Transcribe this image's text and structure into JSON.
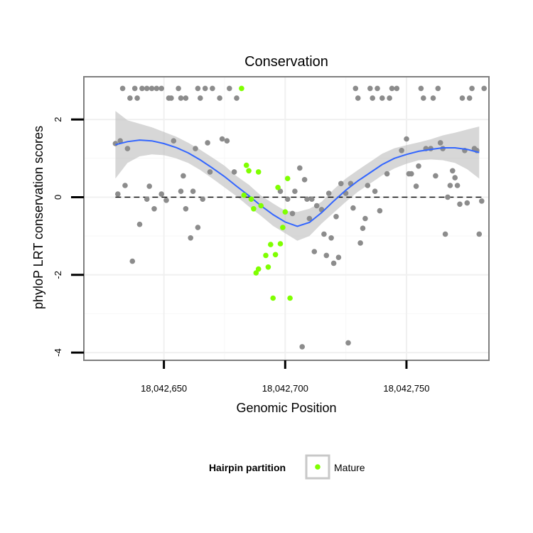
{
  "chart_data": {
    "type": "scatter",
    "title": "Conservation",
    "xlabel": "Genomic Position",
    "ylabel": "phyloP LRT conservation scores",
    "xlim": [
      18042617,
      18042784
    ],
    "ylim": [
      -4.2,
      3.1
    ],
    "x_ticks": [
      18042650,
      18042700,
      18042750
    ],
    "x_tick_labels": [
      "18,042,650",
      "18,042,700",
      "18,042,750"
    ],
    "y_ticks": [
      -4,
      -2,
      0,
      2
    ],
    "y_tick_labels": [
      "-4",
      "-2",
      "0",
      "2"
    ],
    "reference_line": {
      "y": 0,
      "style": "dashed"
    },
    "grid": true,
    "legend": {
      "title": "Hairpin partition",
      "entries": [
        "Mature"
      ],
      "position": "bottom"
    },
    "colors": {
      "other": "#8c8c8c",
      "mature": "#7fff00",
      "smooth": "#3366ff",
      "ribbon": "#bdbdbd",
      "panel_border": "#7f7f7f"
    },
    "series": [
      {
        "points": [
          [
            18042630,
            1.38
          ],
          [
            18042632,
            1.45
          ],
          [
            18042634,
            0.3
          ],
          [
            18042631,
            0.08
          ],
          [
            18042635,
            1.25
          ],
          [
            18042633,
            2.8
          ],
          [
            18042636,
            2.55
          ],
          [
            18042638,
            2.8
          ],
          [
            18042641,
            2.8
          ],
          [
            18042643,
            2.8
          ],
          [
            18042645,
            2.8
          ],
          [
            18042647,
            2.8
          ],
          [
            18042649,
            2.8
          ],
          [
            18042639,
            2.55
          ],
          [
            18042652,
            2.55
          ],
          [
            18042653,
            2.55
          ],
          [
            18042657,
            2.55
          ],
          [
            18042659,
            2.55
          ],
          [
            18042654,
            1.45
          ],
          [
            18042637,
            -1.65
          ],
          [
            18042640,
            -0.7
          ],
          [
            18042643,
            -0.05
          ],
          [
            18042644,
            0.28
          ],
          [
            18042646,
            -0.3
          ],
          [
            18042649,
            0.08
          ],
          [
            18042651,
            -0.08
          ],
          [
            18042656,
            2.8
          ],
          [
            18042657,
            0.15
          ],
          [
            18042658,
            0.55
          ],
          [
            18042659,
            -0.3
          ],
          [
            18042661,
            -1.05
          ],
          [
            18042662,
            0.15
          ],
          [
            18042663,
            1.25
          ],
          [
            18042664,
            -0.78
          ],
          [
            18042666,
            -0.05
          ],
          [
            18042667,
            2.8
          ],
          [
            18042664,
            2.8
          ],
          [
            18042670,
            2.8
          ],
          [
            18042665,
            2.55
          ],
          [
            18042673,
            2.55
          ],
          [
            18042677,
            2.8
          ],
          [
            18042680,
            2.55
          ],
          [
            18042668,
            1.4
          ],
          [
            18042669,
            0.65
          ],
          [
            18042674,
            1.5
          ],
          [
            18042676,
            1.45
          ],
          [
            18042679,
            0.65
          ],
          [
            18042698,
            0.15
          ],
          [
            18042701,
            -0.05
          ],
          [
            18042703,
            -0.42
          ],
          [
            18042704,
            0.15
          ],
          [
            18042706,
            0.75
          ],
          [
            18042707,
            -3.85
          ],
          [
            18042708,
            0.45
          ],
          [
            18042709,
            -0.05
          ],
          [
            18042710,
            -0.55
          ],
          [
            18042711,
            -0.05
          ],
          [
            18042712,
            -1.4
          ],
          [
            18042713,
            -0.22
          ],
          [
            18042715,
            -0.32
          ],
          [
            18042716,
            -0.95
          ],
          [
            18042717,
            -1.5
          ],
          [
            18042718,
            0.1
          ],
          [
            18042719,
            -1.05
          ],
          [
            18042720,
            -1.7
          ],
          [
            18042721,
            -0.5
          ],
          [
            18042722,
            -1.55
          ],
          [
            18042723,
            0.35
          ],
          [
            18042725,
            0.1
          ],
          [
            18042726,
            -3.75
          ],
          [
            18042727,
            0.35
          ],
          [
            18042728,
            -0.28
          ],
          [
            18042729,
            2.8
          ],
          [
            18042730,
            2.55
          ],
          [
            18042731,
            -1.18
          ],
          [
            18042732,
            -0.8
          ],
          [
            18042733,
            -0.55
          ],
          [
            18042734,
            0.3
          ],
          [
            18042735,
            2.8
          ],
          [
            18042736,
            2.55
          ],
          [
            18042737,
            0.15
          ],
          [
            18042738,
            2.8
          ],
          [
            18042739,
            -0.35
          ],
          [
            18042740,
            2.55
          ],
          [
            18042742,
            0.6
          ],
          [
            18042743,
            2.55
          ],
          [
            18042744,
            2.8
          ],
          [
            18042746,
            2.8
          ],
          [
            18042748,
            1.2
          ],
          [
            18042750,
            1.5
          ],
          [
            18042751,
            0.6
          ],
          [
            18042752,
            0.6
          ],
          [
            18042754,
            0.28
          ],
          [
            18042755,
            0.8
          ],
          [
            18042756,
            2.8
          ],
          [
            18042757,
            2.55
          ],
          [
            18042758,
            1.25
          ],
          [
            18042760,
            1.25
          ],
          [
            18042761,
            2.55
          ],
          [
            18042762,
            0.55
          ],
          [
            18042763,
            2.8
          ],
          [
            18042764,
            1.4
          ],
          [
            18042765,
            1.25
          ],
          [
            18042766,
            -0.95
          ],
          [
            18042767,
            0.0
          ],
          [
            18042768,
            0.3
          ],
          [
            18042769,
            0.68
          ],
          [
            18042770,
            0.5
          ],
          [
            18042771,
            0.3
          ],
          [
            18042772,
            -0.18
          ],
          [
            18042773,
            2.55
          ],
          [
            18042774,
            1.2
          ],
          [
            18042775,
            -0.15
          ],
          [
            18042776,
            2.55
          ],
          [
            18042777,
            2.8
          ],
          [
            18042778,
            1.25
          ],
          [
            18042779,
            1.2
          ],
          [
            18042780,
            -0.95
          ],
          [
            18042781,
            -0.1
          ],
          [
            18042782,
            2.8
          ]
        ]
      },
      {
        "name": "Mature",
        "points": [
          [
            18042682,
            2.8
          ],
          [
            18042684,
            0.82
          ],
          [
            18042685,
            0.68
          ],
          [
            18042683,
            0.05
          ],
          [
            18042686,
            -0.05
          ],
          [
            18042687,
            -0.3
          ],
          [
            18042689,
            0.65
          ],
          [
            18042690,
            -0.22
          ],
          [
            18042688,
            -1.95
          ],
          [
            18042689,
            -1.85
          ],
          [
            18042692,
            -1.5
          ],
          [
            18042693,
            -1.8
          ],
          [
            18042694,
            -1.22
          ],
          [
            18042695,
            -2.6
          ],
          [
            18042696,
            -1.48
          ],
          [
            18042697,
            0.25
          ],
          [
            18042698,
            -1.2
          ],
          [
            18042699,
            -0.78
          ],
          [
            18042700,
            -0.38
          ],
          [
            18042701,
            0.48
          ],
          [
            18042702,
            -2.6
          ]
        ]
      }
    ],
    "smooth_line": {
      "x": [
        18042630,
        18042635,
        18042640,
        18042645,
        18042650,
        18042655,
        18042660,
        18042665,
        18042670,
        18042675,
        18042680,
        18042685,
        18042690,
        18042695,
        18042700,
        18042705,
        18042710,
        18042715,
        18042720,
        18042725,
        18042730,
        18042735,
        18042740,
        18042745,
        18042750,
        18042755,
        18042760,
        18042765,
        18042770,
        18042775,
        18042780
      ],
      "y": [
        1.35,
        1.43,
        1.47,
        1.45,
        1.38,
        1.28,
        1.14,
        0.96,
        0.75,
        0.53,
        0.28,
        0.04,
        -0.22,
        -0.45,
        -0.64,
        -0.75,
        -0.65,
        -0.4,
        -0.1,
        0.18,
        0.42,
        0.63,
        0.84,
        1.0,
        1.1,
        1.18,
        1.23,
        1.27,
        1.27,
        1.23,
        1.15
      ],
      "lower": [
        0.48,
        0.88,
        1.05,
        1.1,
        1.08,
        1.0,
        0.88,
        0.7,
        0.48,
        0.25,
        0.02,
        -0.24,
        -0.48,
        -0.74,
        -0.93,
        -1.12,
        -1.0,
        -0.68,
        -0.4,
        -0.12,
        0.14,
        0.35,
        0.56,
        0.74,
        0.86,
        0.95,
        0.97,
        0.95,
        0.88,
        0.72,
        0.48
      ],
      "upper": [
        2.22,
        1.98,
        1.89,
        1.8,
        1.68,
        1.56,
        1.4,
        1.22,
        1.02,
        0.81,
        0.54,
        0.32,
        0.04,
        -0.16,
        -0.35,
        -0.38,
        -0.3,
        -0.12,
        0.2,
        0.48,
        0.7,
        0.91,
        1.12,
        1.26,
        1.34,
        1.41,
        1.49,
        1.59,
        1.66,
        1.74,
        1.82
      ]
    }
  }
}
